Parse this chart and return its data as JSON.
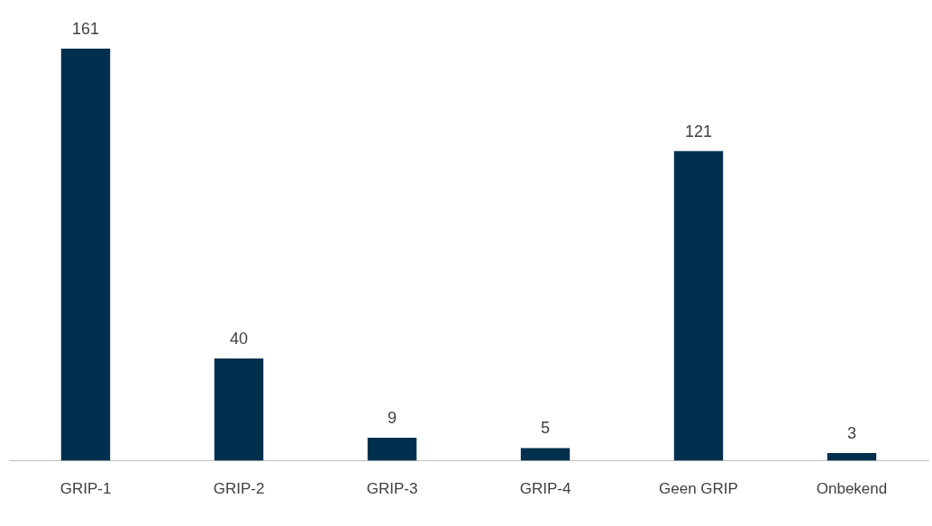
{
  "chart_data": {
    "type": "bar",
    "categories": [
      "GRIP-1",
      "GRIP-2",
      "GRIP-3",
      "GRIP-4",
      "Geen GRIP",
      "Onbekend"
    ],
    "values": [
      161,
      40,
      9,
      5,
      121,
      3
    ],
    "color": "#00304e",
    "data_labels": true,
    "grid": false,
    "legend": false,
    "tick_labels": "x"
  }
}
